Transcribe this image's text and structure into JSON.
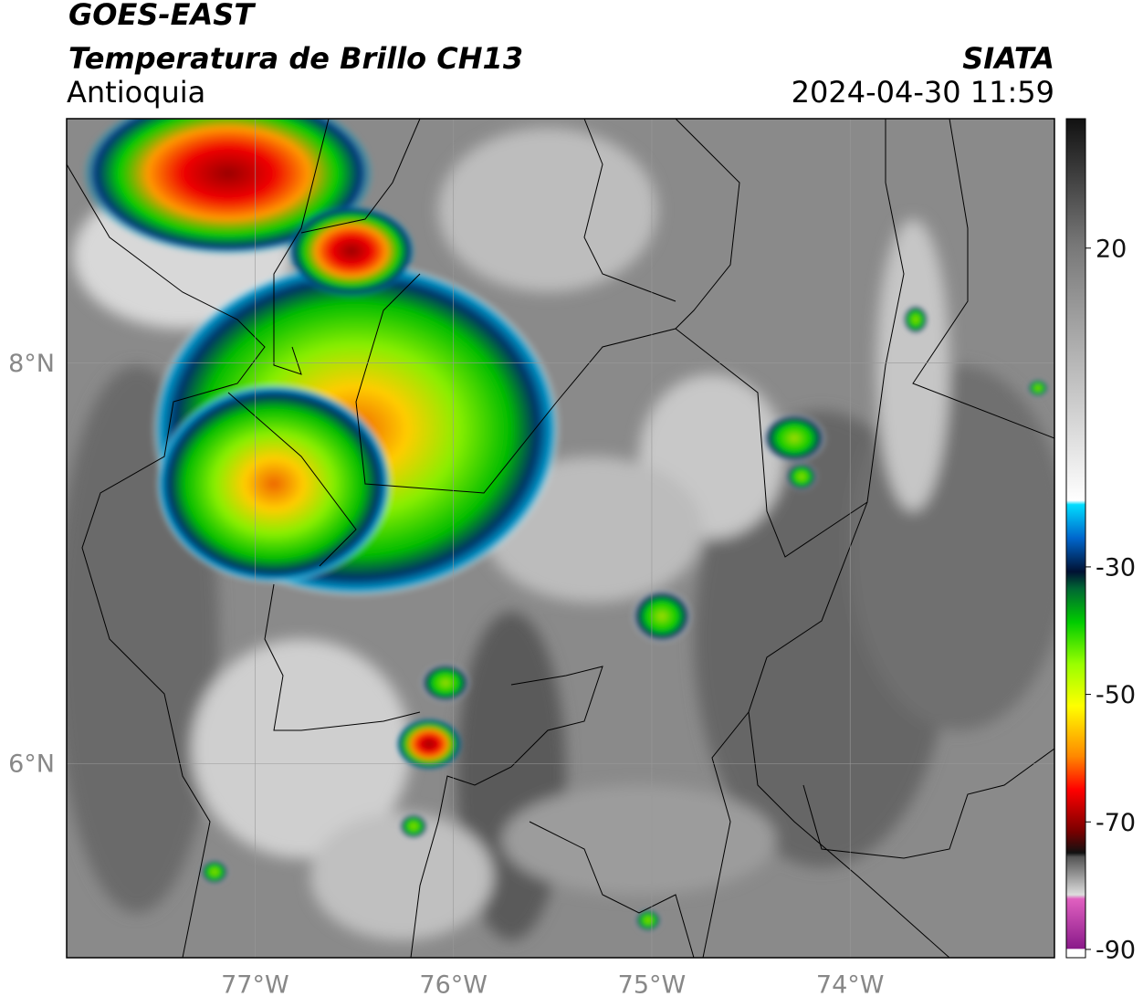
{
  "header": {
    "title": "GOES-EAST",
    "subtitle": "Temperatura de Brillo CH13",
    "region": "Antioquia",
    "source": "SIATA",
    "timestamp": "2024-04-30 11:59"
  },
  "map": {
    "lonlim": [
      -77.95,
      -72.97
    ],
    "latlim": [
      5.03,
      9.22
    ],
    "lon_ticks": [
      {
        "value": -77,
        "label": "77°W"
      },
      {
        "value": -76,
        "label": "76°W"
      },
      {
        "value": -75,
        "label": "75°W"
      },
      {
        "value": -74,
        "label": "74°W"
      }
    ],
    "lat_ticks": [
      {
        "value": 8,
        "label": "8°N"
      },
      {
        "value": 6,
        "label": "6°N"
      }
    ],
    "grid": true
  },
  "colorbar": {
    "lim": [
      -91.3,
      40.3
    ],
    "ticks": [
      20,
      -30,
      -50,
      -70,
      -90
    ]
  }
}
